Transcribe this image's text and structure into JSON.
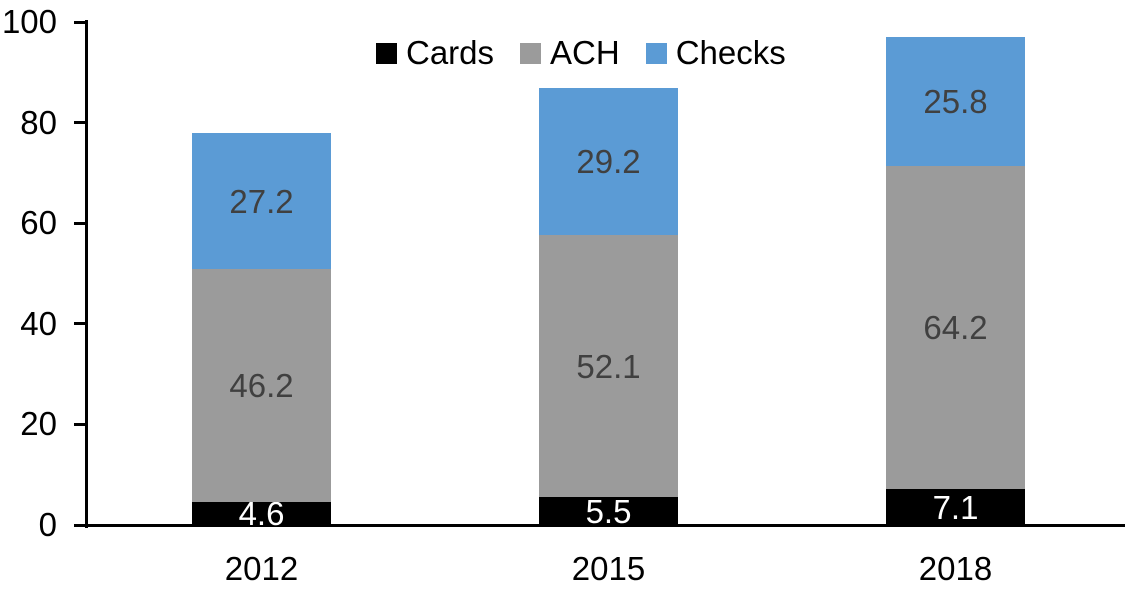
{
  "chart_data": {
    "type": "bar",
    "stacked": true,
    "title": "",
    "xlabel": "",
    "ylabel": "",
    "categories": [
      "2012",
      "2015",
      "2018"
    ],
    "series": [
      {
        "name": "Cards",
        "color": "#000000",
        "label_color": "#ffffff",
        "values": [
          4.6,
          5.5,
          7.1
        ]
      },
      {
        "name": "ACH",
        "color": "#9b9b9b",
        "label_color": "#404040",
        "values": [
          46.2,
          52.1,
          64.2
        ]
      },
      {
        "name": "Checks",
        "color": "#5b9bd5",
        "label_color": "#404040",
        "values": [
          27.2,
          29.2,
          25.8
        ]
      }
    ],
    "ylim": [
      0,
      100
    ],
    "yticks": [
      0,
      20,
      40,
      60,
      80,
      100
    ],
    "legend": {
      "position": "top-center",
      "entries": [
        "Cards",
        "ACH",
        "Checks"
      ]
    },
    "grid": false,
    "axis_color": "#000000",
    "background": "#ffffff"
  }
}
